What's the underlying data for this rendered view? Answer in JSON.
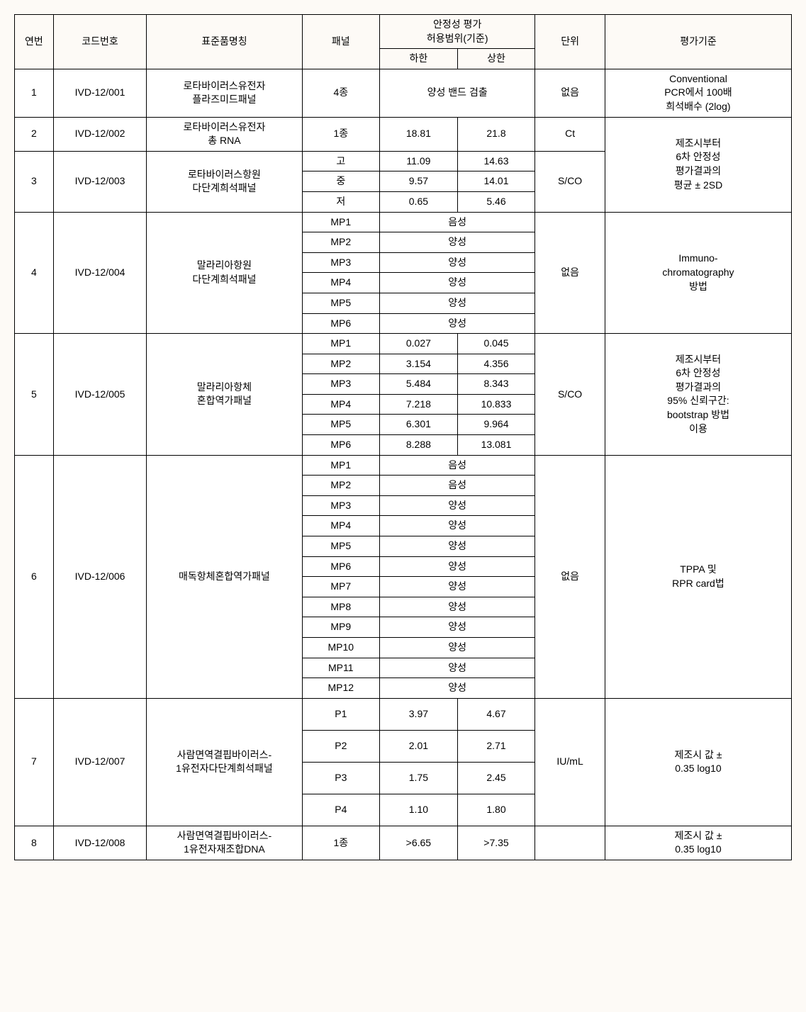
{
  "headers": {
    "col1": "연번",
    "col2": "코드번호",
    "col3": "표준품명칭",
    "col4": "패널",
    "col5": "안정성  평가\n허용범위(기준)",
    "col5a": "하한",
    "col5b": "상한",
    "col6": "단위",
    "col7": "평가기준"
  },
  "r1": {
    "no": "1",
    "code": "IVD-12/001",
    "name": "로타바이러스유전자\n플라즈미드패널",
    "panel": "4종",
    "range": "양성 밴드 검출",
    "unit": "없음",
    "crit": "Conventional\nPCR에서 100배\n희석배수 (2log)"
  },
  "r2": {
    "no": "2",
    "code": "IVD-12/002",
    "name": "로타바이러스유전자\n총 RNA",
    "panel": "1종",
    "lo": "18.81",
    "hi": "21.8",
    "unit": "Ct"
  },
  "r3": {
    "no": "3",
    "code": "IVD-12/003",
    "name": "로타바이러스항원\n다단계희석패널",
    "unit": "S/CO",
    "p": [
      {
        "n": "고",
        "lo": "11.09",
        "hi": "14.63"
      },
      {
        "n": "중",
        "lo": "9.57",
        "hi": "14.01"
      },
      {
        "n": "저",
        "lo": "0.65",
        "hi": "5.46"
      }
    ]
  },
  "crit_2_3": "제조시부터\n6차 안정성\n평가결과의\n평균 ± 2SD",
  "r4": {
    "no": "4",
    "code": "IVD-12/004",
    "name": "말라리아항원\n다단계희석패널",
    "unit": "없음",
    "crit": "Immuno-\nchromatography\n방법",
    "p": [
      {
        "n": "MP1",
        "v": "음성"
      },
      {
        "n": "MP2",
        "v": "양성"
      },
      {
        "n": "MP3",
        "v": "양성"
      },
      {
        "n": "MP4",
        "v": "양성"
      },
      {
        "n": "MP5",
        "v": "양성"
      },
      {
        "n": "MP6",
        "v": "양성"
      }
    ]
  },
  "r5": {
    "no": "5",
    "code": "IVD-12/005",
    "name": "말라리아항체\n혼합역가패널",
    "unit": "S/CO",
    "crit": "제조시부터\n6차 안정성\n평가결과의\n95% 신뢰구간:\nbootstrap 방법\n이용",
    "p": [
      {
        "n": "MP1",
        "lo": "0.027",
        "hi": "0.045"
      },
      {
        "n": "MP2",
        "lo": "3.154",
        "hi": "4.356"
      },
      {
        "n": "MP3",
        "lo": "5.484",
        "hi": "8.343"
      },
      {
        "n": "MP4",
        "lo": "7.218",
        "hi": "10.833"
      },
      {
        "n": "MP5",
        "lo": "6.301",
        "hi": "9.964"
      },
      {
        "n": "MP6",
        "lo": "8.288",
        "hi": "13.081"
      }
    ]
  },
  "r6": {
    "no": "6",
    "code": "IVD-12/006",
    "name": "매독항체혼합역가패널",
    "unit": "없음",
    "crit": "TPPA 및\nRPR card법",
    "p": [
      {
        "n": "MP1",
        "v": "음성"
      },
      {
        "n": "MP2",
        "v": "음성"
      },
      {
        "n": "MP3",
        "v": "양성"
      },
      {
        "n": "MP4",
        "v": "양성"
      },
      {
        "n": "MP5",
        "v": "양성"
      },
      {
        "n": "MP6",
        "v": "양성"
      },
      {
        "n": "MP7",
        "v": "양성"
      },
      {
        "n": "MP8",
        "v": "양성"
      },
      {
        "n": "MP9",
        "v": "양성"
      },
      {
        "n": "MP10",
        "v": "양성"
      },
      {
        "n": "MP11",
        "v": "양성"
      },
      {
        "n": "MP12",
        "v": "양성"
      }
    ]
  },
  "r7": {
    "no": "7",
    "code": "IVD-12/007",
    "name": "사람면역결핍바이러스-\n1유전자다단계희석패널",
    "unit": "IU/mL",
    "crit": "제조시 값 ±\n0.35 log10",
    "p": [
      {
        "n": "P1",
        "lo": "3.97",
        "hi": "4.67"
      },
      {
        "n": "P2",
        "lo": "2.01",
        "hi": "2.71"
      },
      {
        "n": "P3",
        "lo": "1.75",
        "hi": "2.45"
      },
      {
        "n": "P4",
        "lo": "1.10",
        "hi": "1.80"
      }
    ]
  },
  "r8": {
    "no": "8",
    "code": "IVD-12/008",
    "name": "사람면역결핍바이러스-\n1유전자재조합DNA",
    "panel": "1종",
    "lo": ">6.65",
    "hi": ">7.35",
    "unit": "",
    "crit": "제조시 값 ±\n0.35 log10"
  }
}
